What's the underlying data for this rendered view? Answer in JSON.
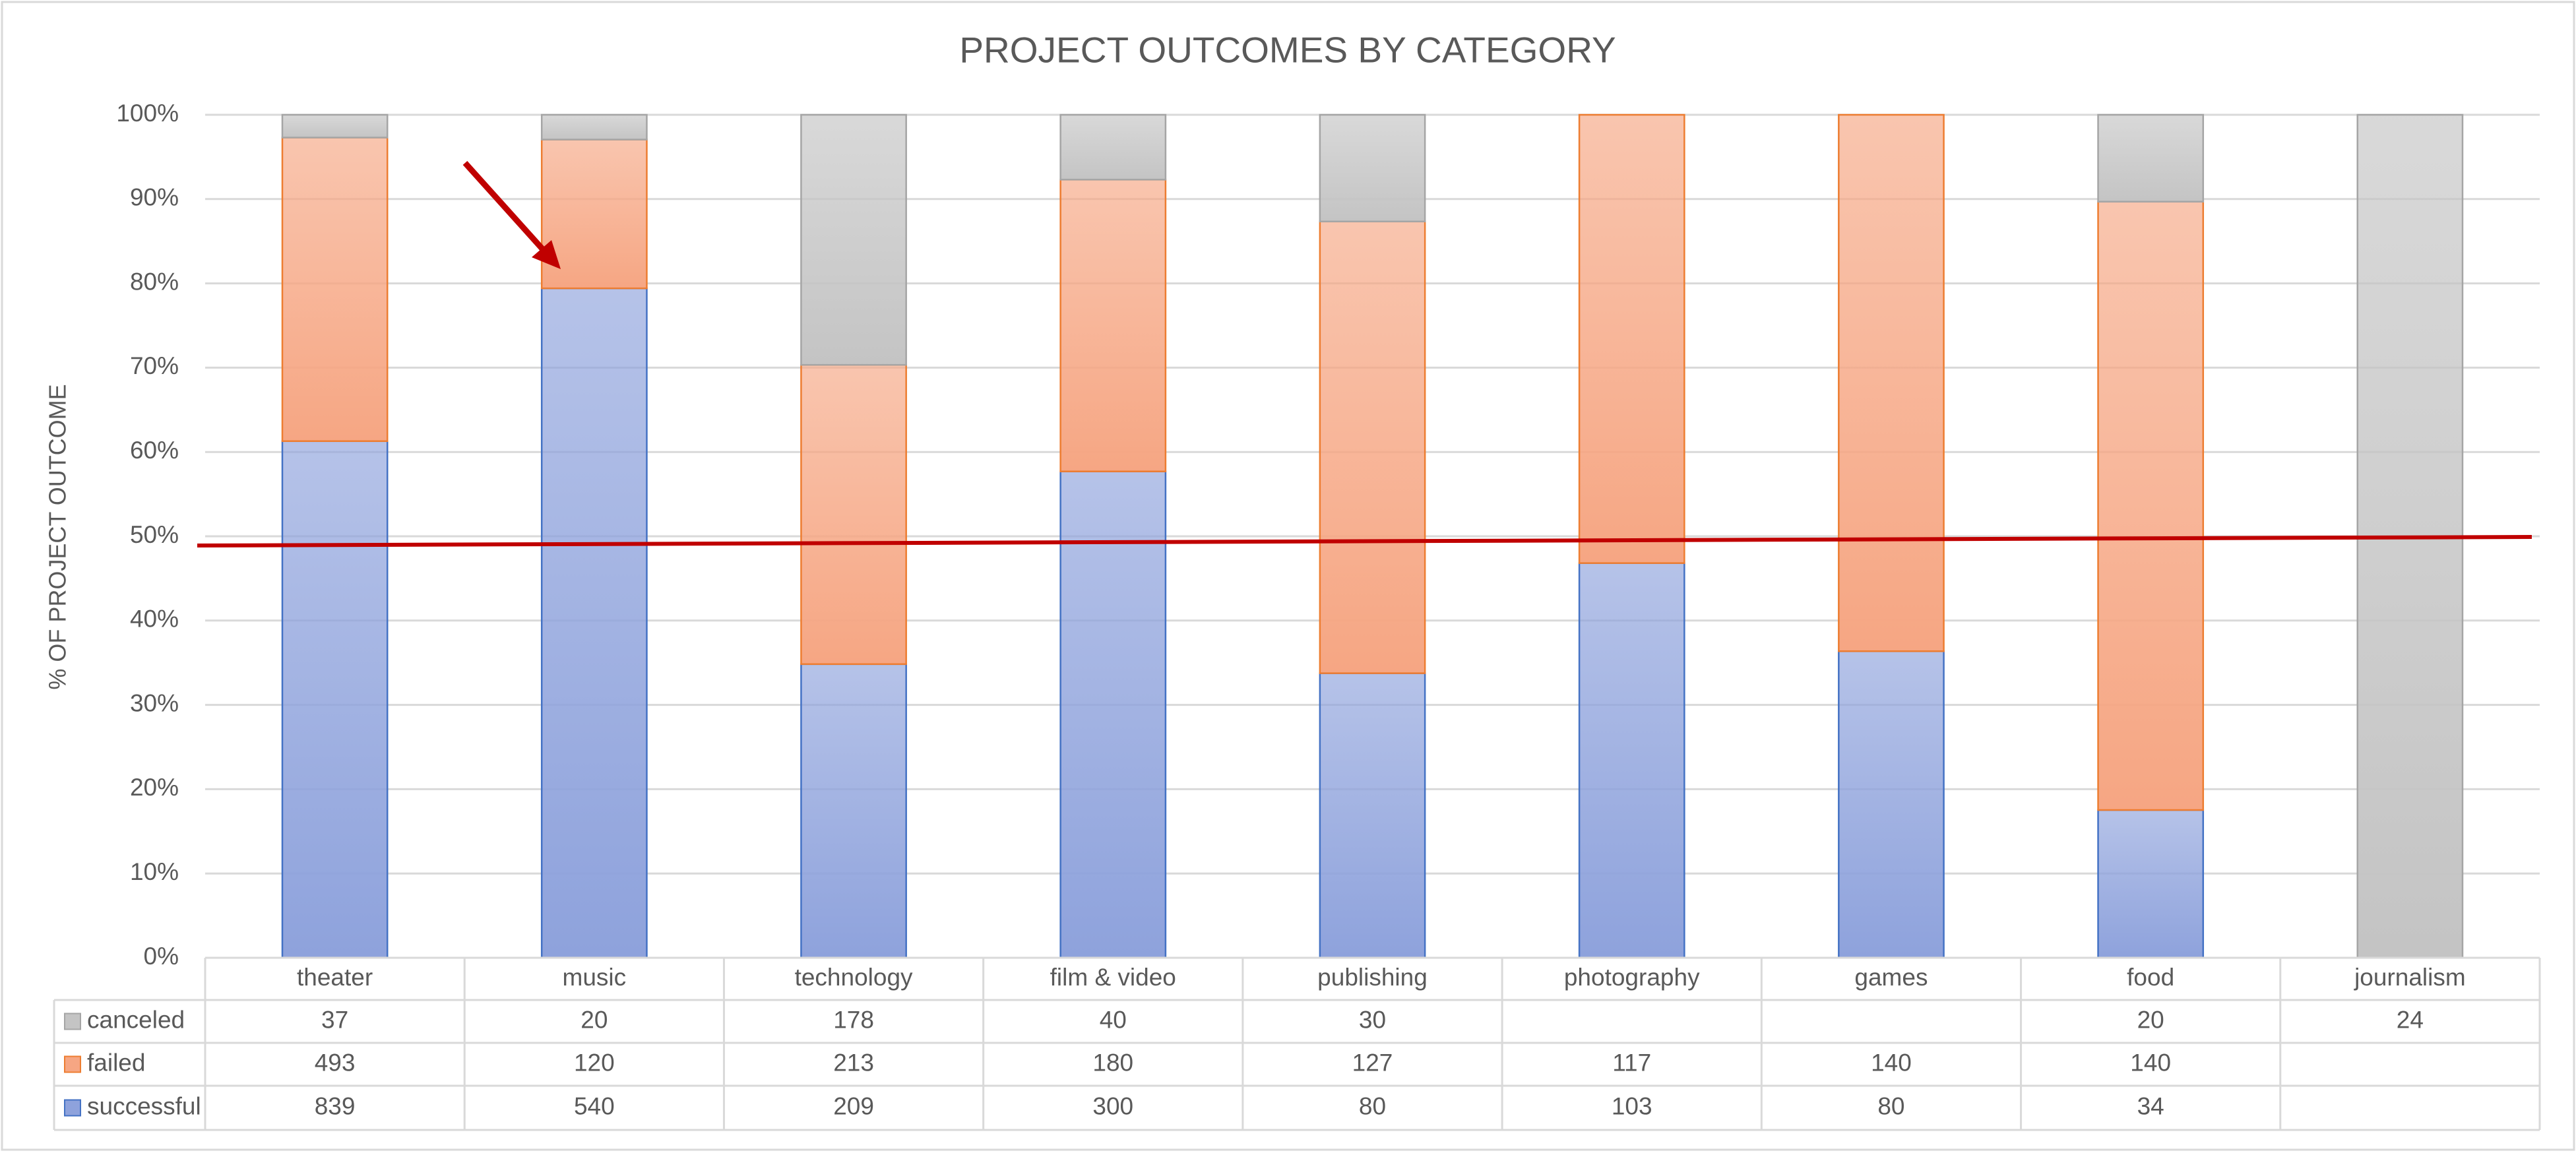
{
  "chart_data": {
    "type": "bar",
    "stacking": "percent",
    "title": "PROJECT OUTCOMES BY CATEGORY",
    "y_label": "% OF PROJECT OUTCOME",
    "categories": [
      "theater",
      "music",
      "technology",
      "film & video",
      "publishing",
      "photography",
      "games",
      "food",
      "journalism"
    ],
    "series": [
      {
        "name": "canceled",
        "color": "#c4c4c4",
        "border_color": "#a5a5a5",
        "values": [
          37,
          20,
          178,
          40,
          30,
          null,
          null,
          20,
          24
        ]
      },
      {
        "name": "failed",
        "color": "#f6a683",
        "border_color": "#ed7d31",
        "values": [
          493,
          120,
          213,
          180,
          127,
          117,
          140,
          140,
          null
        ]
      },
      {
        "name": "successful",
        "color": "#8ea2dc",
        "border_color": "#4472c4",
        "values": [
          839,
          540,
          209,
          300,
          80,
          103,
          80,
          34,
          null
        ]
      }
    ],
    "ylim": [
      0,
      100
    ],
    "yticks": [
      {
        "value": 0,
        "label": "0%"
      },
      {
        "value": 10,
        "label": "10%"
      },
      {
        "value": 20,
        "label": "20%"
      },
      {
        "value": 30,
        "label": "30%"
      },
      {
        "value": 40,
        "label": "40%"
      },
      {
        "value": 50,
        "label": "50%"
      },
      {
        "value": 60,
        "label": "60%"
      },
      {
        "value": 70,
        "label": "70%"
      },
      {
        "value": 80,
        "label": "80%"
      },
      {
        "value": 90,
        "label": "90%"
      },
      {
        "value": 100,
        "label": "100%"
      }
    ],
    "grid": true
  }
}
